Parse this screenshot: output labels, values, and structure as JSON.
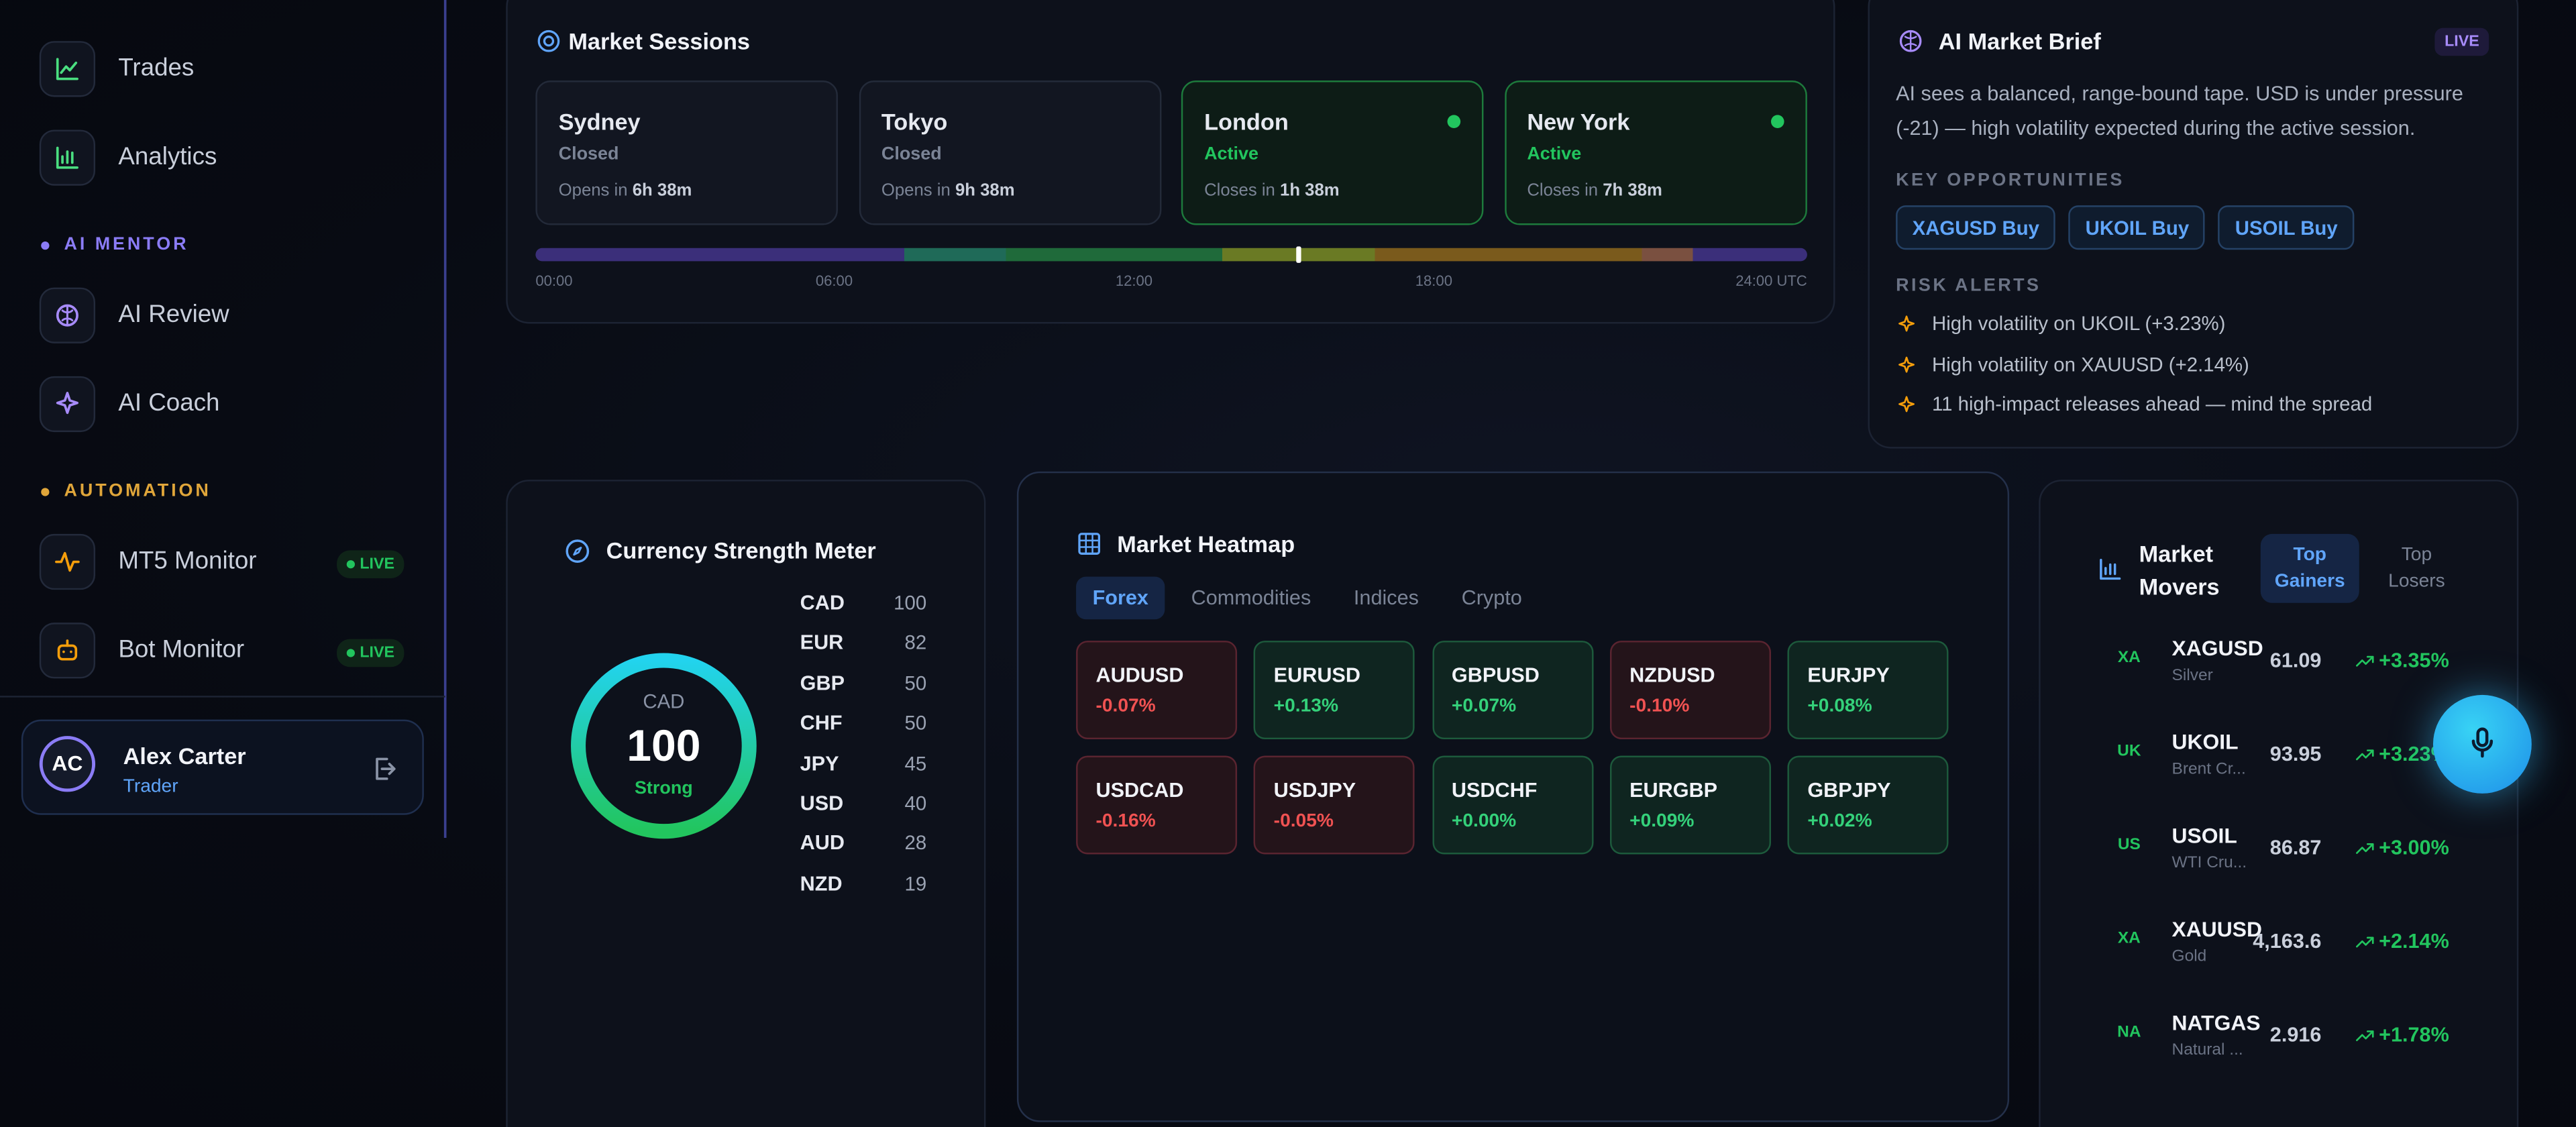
{
  "sidebar": {
    "nav": [
      "Trades",
      "Analytics"
    ],
    "sections": [
      {
        "title": "AI MENTOR",
        "items": [
          {
            "label": "AI Review"
          },
          {
            "label": "AI Coach"
          }
        ]
      },
      {
        "title": "AUTOMATION",
        "items": [
          {
            "label": "MT5 Monitor",
            "badge": "LIVE"
          },
          {
            "label": "Bot Monitor",
            "badge": "LIVE"
          }
        ]
      }
    ],
    "user": {
      "initials": "AC",
      "name": "Alex Carter",
      "role": "Trader"
    }
  },
  "market_sessions": {
    "title": "Market Sessions",
    "sessions": [
      {
        "name": "Sydney",
        "status": "Closed",
        "countdown_label": "Opens in",
        "countdown": "6h 38m"
      },
      {
        "name": "Tokyo",
        "status": "Closed",
        "countdown_label": "Opens in",
        "countdown": "9h 38m"
      },
      {
        "name": "London",
        "status": "Active",
        "countdown_label": "Closes in",
        "countdown": "1h 38m"
      },
      {
        "name": "New York",
        "status": "Active",
        "countdown_label": "Closes in",
        "countdown": "7h 38m"
      }
    ],
    "timeline_labels": [
      "00:00",
      "06:00",
      "12:00",
      "18:00",
      "24:00 UTC"
    ]
  },
  "ai_brief": {
    "title": "AI Market Brief",
    "badge": "LIVE",
    "summary": "AI sees a balanced, range-bound tape. USD is under pressure (-21) — high volatility expected during the active session.",
    "opportunities_title": "KEY OPPORTUNITIES",
    "opportunities": [
      "XAGUSD Buy",
      "UKOIL Buy",
      "USOIL Buy"
    ],
    "risks_title": "RISK ALERTS",
    "risks": [
      "High volatility on UKOIL (+3.23%)",
      "High volatility on XAUUSD (+2.14%)",
      "11 high-impact releases ahead — mind the spread"
    ]
  },
  "strength": {
    "title": "Currency Strength Meter",
    "gauge": {
      "currency": "CAD",
      "value": "100",
      "label": "Strong"
    },
    "rows": [
      {
        "currency": "CAD",
        "value": "100"
      },
      {
        "currency": "EUR",
        "value": "82"
      },
      {
        "currency": "GBP",
        "value": "50"
      },
      {
        "currency": "CHF",
        "value": "50"
      },
      {
        "currency": "JPY",
        "value": "45"
      },
      {
        "currency": "USD",
        "value": "40"
      },
      {
        "currency": "AUD",
        "value": "28"
      },
      {
        "currency": "NZD",
        "value": "19"
      }
    ]
  },
  "heatmap": {
    "title": "Market Heatmap",
    "tabs": [
      "Forex",
      "Commodities",
      "Indices",
      "Crypto"
    ],
    "tiles": [
      {
        "pair": "AUDUSD",
        "change": "-0.07%"
      },
      {
        "pair": "EURUSD",
        "change": "+0.13%"
      },
      {
        "pair": "GBPUSD",
        "change": "+0.07%"
      },
      {
        "pair": "NZDUSD",
        "change": "-0.10%"
      },
      {
        "pair": "EURJPY",
        "change": "+0.08%"
      },
      {
        "pair": "USDCAD",
        "change": "-0.16%"
      },
      {
        "pair": "USDJPY",
        "change": "-0.05%"
      },
      {
        "pair": "USDCHF",
        "change": "+0.00%"
      },
      {
        "pair": "EURGBP",
        "change": "+0.09%"
      },
      {
        "pair": "GBPJPY",
        "change": "+0.02%"
      }
    ]
  },
  "movers": {
    "title": "Market Movers",
    "tabs": [
      "Top Gainers",
      "Top Losers"
    ],
    "rows": [
      {
        "badge": "XA",
        "symbol": "XAGUSD",
        "name": "Silver",
        "price": "61.09",
        "change": "+3.35%"
      },
      {
        "badge": "UK",
        "symbol": "UKOIL",
        "name": "Brent Cr...",
        "price": "93.95",
        "change": "+3.23%"
      },
      {
        "badge": "US",
        "symbol": "USOIL",
        "name": "WTI Cru...",
        "price": "86.87",
        "change": "+3.00%"
      },
      {
        "badge": "XA",
        "symbol": "XAUUSD",
        "name": "Gold",
        "price": "4,163.6",
        "change": "+2.14%"
      },
      {
        "badge": "NA",
        "symbol": "NATGAS",
        "name": "Natural ...",
        "price": "2.916",
        "change": "+1.78%"
      }
    ]
  }
}
